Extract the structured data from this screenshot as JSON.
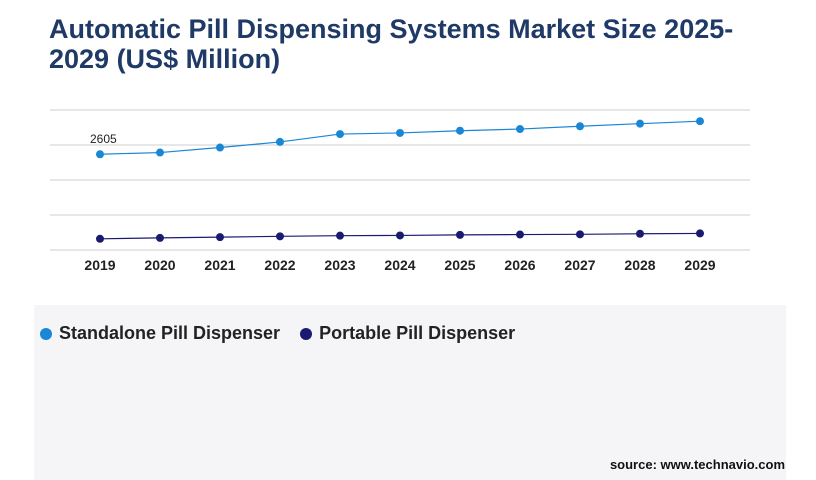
{
  "title": "Automatic Pill Dispensing Systems Market Size 2025-2029 (US$ Million)",
  "source": "source: www.technavio.com",
  "colors": {
    "standalone": "#1a86d6",
    "portable": "#1a1a70",
    "grid": "#cfcfcf"
  },
  "chart_data": {
    "type": "line",
    "categories": [
      "2019",
      "2020",
      "2021",
      "2022",
      "2023",
      "2024",
      "2025",
      "2026",
      "2027",
      "2028",
      "2029"
    ],
    "series": [
      {
        "name": "Standalone Pill Dispenser",
        "values": [
          2605,
          2620,
          2665,
          2715,
          2785,
          2795,
          2815,
          2830,
          2855,
          2878,
          2900
        ]
      },
      {
        "name": "Portable Pill Dispenser",
        "values": [
          1850,
          1858,
          1865,
          1872,
          1878,
          1880,
          1885,
          1888,
          1890,
          1895,
          1898
        ]
      }
    ],
    "data_labels": [
      {
        "series": 0,
        "index": 0,
        "text": "2605"
      }
    ],
    "ylim": [
      1750,
      3000
    ],
    "grid": true,
    "legend": "bottom-left",
    "xlabel": "",
    "ylabel": ""
  }
}
